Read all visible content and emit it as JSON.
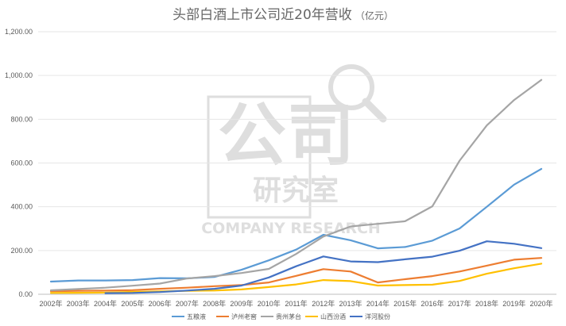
{
  "chart_data": {
    "type": "line",
    "title": "头部白酒上市公司近20年营收",
    "title_unit": "（亿元）",
    "xlabel": "",
    "ylabel": "",
    "ylim": [
      0,
      1200
    ],
    "y_ticks": [
      "0.00",
      "200.00",
      "400.00",
      "600.00",
      "800.00",
      "1,000.00",
      "1,200.00"
    ],
    "y_tick_values": [
      0,
      200,
      400,
      600,
      800,
      1000,
      1200
    ],
    "grid": "horizontal",
    "legend_position": "bottom",
    "categories": [
      "2002年",
      "2003年",
      "2004年",
      "2005年",
      "2006年",
      "2007年",
      "2008年",
      "2009年",
      "2010年",
      "2011年",
      "2012年",
      "2013年",
      "2014年",
      "2015年",
      "2016年",
      "2017年",
      "2018年",
      "2019年",
      "2020年"
    ],
    "series": [
      {
        "name": "五粮液",
        "color": "#5b9bd5",
        "values": [
          58,
          63,
          63,
          65,
          74,
          73,
          79,
          112,
          155,
          204,
          272,
          247,
          210,
          216,
          245,
          301,
          400,
          501,
          573
        ]
      },
      {
        "name": "泸州老窖",
        "color": "#ed7d31",
        "values": [
          14,
          16,
          17,
          19,
          25,
          30,
          37,
          42,
          54,
          84,
          115,
          104,
          54,
          69,
          83,
          104,
          131,
          158,
          166
        ]
      },
      {
        "name": "贵州茅台",
        "color": "#a5a5a5",
        "values": [
          18,
          24,
          30,
          39,
          49,
          72,
          83,
          97,
          116,
          184,
          264,
          310,
          322,
          334,
          402,
          611,
          772,
          888,
          980
        ]
      },
      {
        "name": "山西汾酒",
        "color": "#ffc000",
        "values": [
          6,
          7,
          8,
          11,
          13,
          16,
          17,
          22,
          33,
          45,
          65,
          60,
          40,
          42,
          44,
          61,
          94,
          119,
          140
        ]
      },
      {
        "name": "洋河股份",
        "color": "#4472c4",
        "values": [
          null,
          null,
          5,
          6,
          10,
          17,
          25,
          40,
          77,
          128,
          173,
          150,
          147,
          160,
          172,
          199,
          242,
          231,
          211
        ]
      }
    ]
  },
  "watermark": {
    "brand": "公司",
    "sub": "研究室",
    "en": "COMPANY RESEARCH"
  }
}
